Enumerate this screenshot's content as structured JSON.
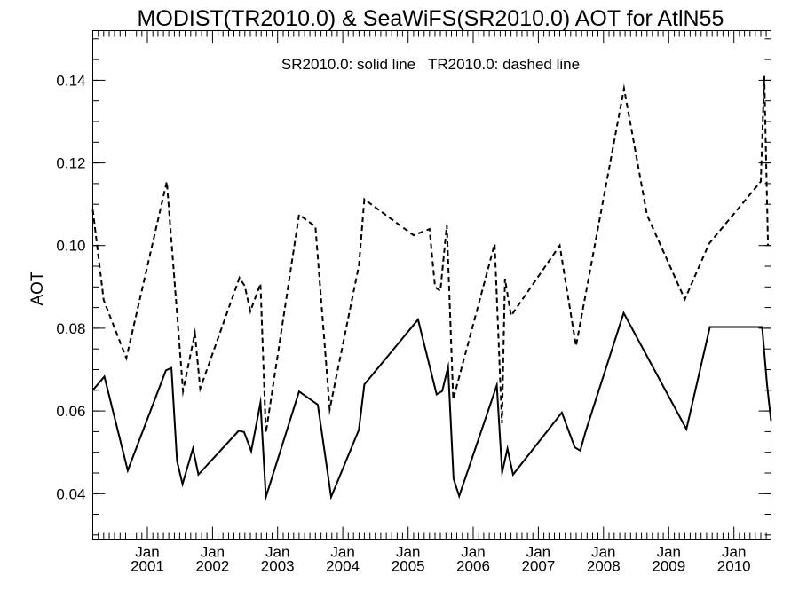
{
  "chart_data": {
    "type": "line",
    "title": "MODIST(TR2010.0) & SeaWiFS(SR2010.0)  AOT for AtlN55",
    "annotation": "SR2010.0: solid line   TR2010.0: dashed line",
    "xlabel": "",
    "ylabel": "AOT",
    "xlim": [
      "2000-03-01",
      "2010-07-28"
    ],
    "ylim": [
      0.029,
      0.152
    ],
    "grid": false,
    "yticks": [
      {
        "value": 0.04,
        "label": "0.04"
      },
      {
        "value": 0.06,
        "label": "0.06"
      },
      {
        "value": 0.08,
        "label": "0.08"
      },
      {
        "value": 0.1,
        "label": "0.10"
      },
      {
        "value": 0.12,
        "label": "0.12"
      },
      {
        "value": 0.14,
        "label": "0.14"
      }
    ],
    "xticks": [
      {
        "date": "2001-01-01",
        "month": "Jan",
        "year": "2001"
      },
      {
        "date": "2002-01-01",
        "month": "Jan",
        "year": "2002"
      },
      {
        "date": "2003-01-01",
        "month": "Jan",
        "year": "2003"
      },
      {
        "date": "2004-01-01",
        "month": "Jan",
        "year": "2004"
      },
      {
        "date": "2005-01-01",
        "month": "Jan",
        "year": "2005"
      },
      {
        "date": "2006-01-01",
        "month": "Jan",
        "year": "2006"
      },
      {
        "date": "2007-01-01",
        "month": "Jan",
        "year": "2007"
      },
      {
        "date": "2008-01-01",
        "month": "Jan",
        "year": "2008"
      },
      {
        "date": "2009-01-01",
        "month": "Jan",
        "year": "2009"
      },
      {
        "date": "2010-01-01",
        "month": "Jan",
        "year": "2010"
      }
    ],
    "series": [
      {
        "name": "SR2010.0",
        "style": "solid",
        "points": [
          [
            "2000-03-01",
            0.065
          ],
          [
            "2000-05-05",
            0.0683
          ],
          [
            "2000-09-13",
            0.0456
          ],
          [
            "2001-04-15",
            0.0698
          ],
          [
            "2001-05-16",
            0.0704
          ],
          [
            "2001-06-16",
            0.0479
          ],
          [
            "2001-07-17",
            0.0423
          ],
          [
            "2001-09-13",
            0.0509
          ],
          [
            "2001-10-14",
            0.0446
          ],
          [
            "2002-05-28",
            0.0552
          ],
          [
            "2002-06-27",
            0.0549
          ],
          [
            "2002-08-06",
            0.0503
          ],
          [
            "2002-09-27",
            0.062
          ],
          [
            "2002-10-27",
            0.0392
          ],
          [
            "2003-05-01",
            0.0647
          ],
          [
            "2003-08-14",
            0.0615
          ],
          [
            "2003-10-28",
            0.0392
          ],
          [
            "2004-03-31",
            0.0554
          ],
          [
            "2004-05-01",
            0.0664
          ],
          [
            "2005-02-26",
            0.0821
          ],
          [
            "2005-06-10",
            0.064
          ],
          [
            "2005-07-11",
            0.0648
          ],
          [
            "2005-08-13",
            0.0706
          ],
          [
            "2005-09-13",
            0.0436
          ],
          [
            "2005-10-14",
            0.0394
          ],
          [
            "2006-05-13",
            0.0662
          ],
          [
            "2006-06-12",
            0.0451
          ],
          [
            "2006-07-12",
            0.0509
          ],
          [
            "2006-08-12",
            0.0446
          ],
          [
            "2007-05-13",
            0.0596
          ],
          [
            "2007-07-24",
            0.0512
          ],
          [
            "2007-08-24",
            0.0504
          ],
          [
            "2007-09-24",
            0.0552
          ],
          [
            "2008-04-23",
            0.0837
          ],
          [
            "2009-04-10",
            0.0556
          ],
          [
            "2009-08-19",
            0.0803
          ],
          [
            "2010-06-08",
            0.0803
          ],
          [
            "2010-07-05",
            0.0666
          ],
          [
            "2010-07-28",
            0.0576
          ]
        ]
      },
      {
        "name": "TR2010.0",
        "style": "dashed",
        "points": [
          [
            "2000-03-01",
            0.1087
          ],
          [
            "2000-05-01",
            0.0868
          ],
          [
            "2000-09-05",
            0.0728
          ],
          [
            "2001-04-20",
            0.1155
          ],
          [
            "2001-07-20",
            0.0648
          ],
          [
            "2001-09-24",
            0.0788
          ],
          [
            "2001-10-24",
            0.0654
          ],
          [
            "2002-06-01",
            0.0922
          ],
          [
            "2002-06-30",
            0.0903
          ],
          [
            "2002-08-01",
            0.0841
          ],
          [
            "2002-09-27",
            0.0908
          ],
          [
            "2002-10-27",
            0.0547
          ],
          [
            "2003-05-01",
            0.1075
          ],
          [
            "2003-08-01",
            0.1046
          ],
          [
            "2003-10-20",
            0.0604
          ],
          [
            "2004-04-01",
            0.0953
          ],
          [
            "2004-05-01",
            0.1112
          ],
          [
            "2005-02-01",
            0.1025
          ],
          [
            "2005-05-01",
            0.104
          ],
          [
            "2005-06-01",
            0.09
          ],
          [
            "2005-07-01",
            0.089
          ],
          [
            "2005-08-06",
            0.105
          ],
          [
            "2005-09-11",
            0.0628
          ],
          [
            "2006-05-01",
            0.1004
          ],
          [
            "2006-06-11",
            0.057
          ],
          [
            "2006-06-28",
            0.092
          ],
          [
            "2006-08-01",
            0.083
          ],
          [
            "2007-05-01",
            0.1
          ],
          [
            "2007-07-31",
            0.0757
          ],
          [
            "2008-04-25",
            0.138
          ],
          [
            "2008-09-01",
            0.1074
          ],
          [
            "2009-04-01",
            0.087
          ],
          [
            "2009-08-15",
            0.1005
          ],
          [
            "2010-06-01",
            0.1155
          ],
          [
            "2010-06-20",
            0.141
          ],
          [
            "2010-07-11",
            0.1
          ]
        ]
      }
    ]
  }
}
